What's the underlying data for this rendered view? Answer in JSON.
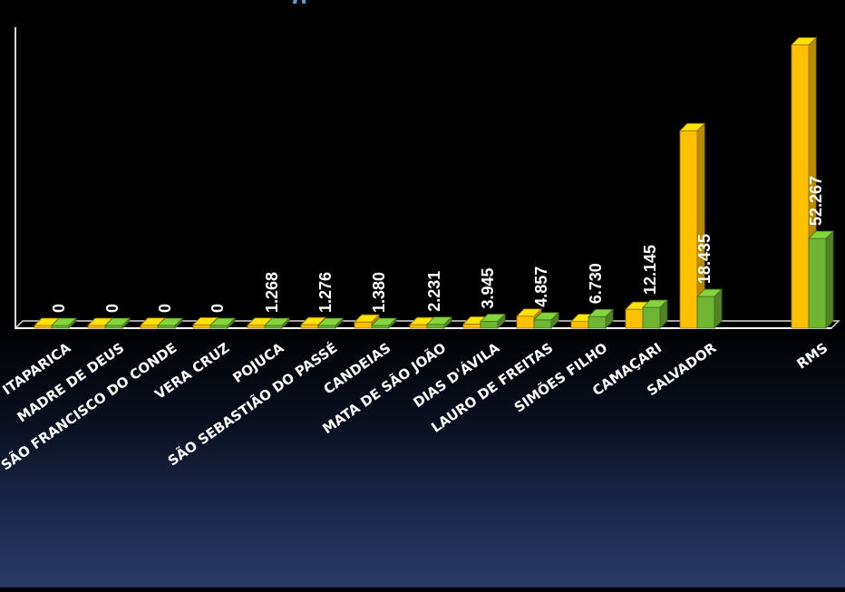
{
  "chart_data": {
    "type": "bar",
    "title": "",
    "categories": [
      "ITAPARICA",
      "MADRE DE DEUS",
      "SÃO FRANCISCO DO CONDE",
      "VERA CRUZ",
      "POJUCA",
      "SÃO SEBASTIÃO DO PASSÉ",
      "CANDEIAS",
      "MATA DE SÃO JOÃO",
      "DIAS D'ÁVILA",
      "LAURO DE FREITAS",
      "SIMÕES FILHO",
      "CAMAÇARI",
      "SALVADOR",
      "RMS"
    ],
    "series": [
      {
        "color": "#ffc000",
        "values": [
          1500,
          1600,
          1700,
          1900,
          1700,
          2000,
          3600,
          2000,
          2400,
          7000,
          3900,
          11000,
          115000,
          165000
        ]
      },
      {
        "color": "#70b434",
        "values": [
          0,
          0,
          0,
          0,
          1268,
          1276,
          1380,
          2231,
          3945,
          4857,
          6730,
          12145,
          18435,
          52267
        ]
      }
    ],
    "value_labels": [
      "0",
      "0",
      "0",
      "0",
      "1.268",
      "1.276",
      "1.380",
      "2.231",
      "3.945",
      "4.857",
      "6.730",
      "12.145",
      "18.435",
      "52.267"
    ],
    "ylim": [
      0,
      170000
    ],
    "grid": false,
    "legend": "none"
  }
}
